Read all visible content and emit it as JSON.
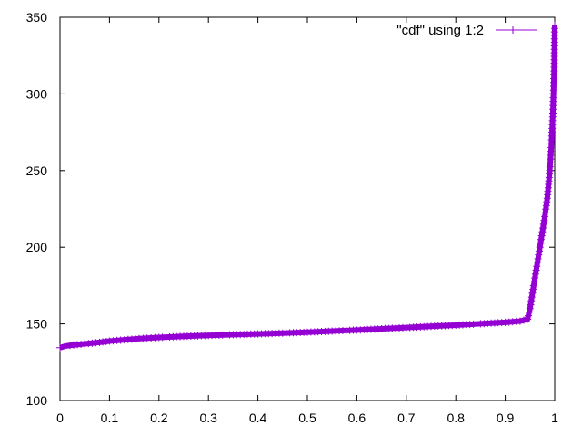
{
  "chart_data": {
    "type": "line",
    "title": "",
    "xlabel": "",
    "ylabel": "",
    "xlim": [
      0,
      1
    ],
    "ylim": [
      100,
      350
    ],
    "xticks": [
      "0",
      "0.1",
      "0.2",
      "0.3",
      "0.4",
      "0.5",
      "0.6",
      "0.7",
      "0.8",
      "0.9",
      "1"
    ],
    "yticks": [
      "100",
      "150",
      "200",
      "250",
      "300",
      "350"
    ],
    "grid": false,
    "legend_position": "top-right",
    "series": [
      {
        "name": "\"cdf\" using 1:2",
        "color": "#9400d3",
        "marker": "plus",
        "points": [
          [
            0.0,
            134.5
          ],
          [
            0.01,
            135.5
          ],
          [
            0.02,
            136.0
          ],
          [
            0.05,
            137.0
          ],
          [
            0.08,
            138.0
          ],
          [
            0.1,
            138.8
          ],
          [
            0.13,
            139.6
          ],
          [
            0.16,
            140.4
          ],
          [
            0.2,
            141.2
          ],
          [
            0.25,
            141.9
          ],
          [
            0.3,
            142.5
          ],
          [
            0.35,
            143.0
          ],
          [
            0.4,
            143.5
          ],
          [
            0.45,
            144.0
          ],
          [
            0.5,
            144.6
          ],
          [
            0.55,
            145.3
          ],
          [
            0.6,
            146.0
          ],
          [
            0.65,
            146.8
          ],
          [
            0.7,
            147.6
          ],
          [
            0.75,
            148.4
          ],
          [
            0.8,
            149.2
          ],
          [
            0.85,
            150.1
          ],
          [
            0.9,
            151.0
          ],
          [
            0.93,
            151.8
          ],
          [
            0.945,
            153.0
          ],
          [
            0.95,
            160.0
          ],
          [
            0.955,
            170.0
          ],
          [
            0.96,
            180.0
          ],
          [
            0.965,
            190.0
          ],
          [
            0.97,
            200.0
          ],
          [
            0.975,
            210.0
          ],
          [
            0.98,
            220.0
          ],
          [
            0.985,
            232.0
          ],
          [
            0.99,
            250.0
          ],
          [
            0.993,
            265.0
          ],
          [
            0.996,
            285.0
          ],
          [
            0.998,
            305.0
          ],
          [
            0.999,
            320.0
          ],
          [
            1.0,
            345.0
          ]
        ]
      }
    ]
  }
}
